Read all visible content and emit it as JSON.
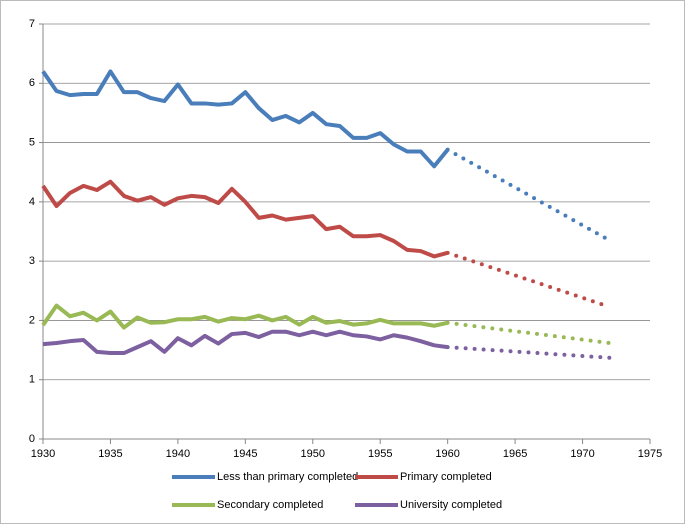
{
  "chart_data": {
    "type": "line",
    "x": [
      1930,
      1931,
      1932,
      1933,
      1934,
      1935,
      1936,
      1937,
      1938,
      1939,
      1940,
      1941,
      1942,
      1943,
      1944,
      1945,
      1946,
      1947,
      1948,
      1949,
      1950,
      1951,
      1952,
      1953,
      1954,
      1955,
      1956,
      1957,
      1958,
      1959,
      1960
    ],
    "projection_x": 1972,
    "series": [
      {
        "name": "Less than primary completed",
        "color": "#4a7ebb",
        "values": [
          6.2,
          5.87,
          5.8,
          5.82,
          5.82,
          6.2,
          5.85,
          5.85,
          5.75,
          5.7,
          5.98,
          5.66,
          5.66,
          5.64,
          5.66,
          5.85,
          5.58,
          5.38,
          5.45,
          5.34,
          5.5,
          5.31,
          5.28,
          5.08,
          5.08,
          5.16,
          4.97,
          4.85,
          4.85,
          4.6,
          4.88
        ],
        "projection_value": 3.35
      },
      {
        "name": "Primary completed",
        "color": "#be4b48",
        "values": [
          4.27,
          3.93,
          4.15,
          4.27,
          4.2,
          4.34,
          4.1,
          4.02,
          4.08,
          3.95,
          4.06,
          4.1,
          4.08,
          3.98,
          4.22,
          4.0,
          3.73,
          3.77,
          3.7,
          3.73,
          3.76,
          3.54,
          3.58,
          3.42,
          3.42,
          3.44,
          3.34,
          3.19,
          3.17,
          3.08,
          3.14
        ],
        "projection_value": 2.23
      },
      {
        "name": "Secondary completed",
        "color": "#98b954",
        "values": [
          1.92,
          2.25,
          2.07,
          2.13,
          2.0,
          2.15,
          1.88,
          2.05,
          1.96,
          1.97,
          2.02,
          2.02,
          2.06,
          1.98,
          2.04,
          2.02,
          2.08,
          2.0,
          2.06,
          1.93,
          2.06,
          1.96,
          1.99,
          1.93,
          1.95,
          2.01,
          1.95,
          1.95,
          1.95,
          1.91,
          1.96
        ],
        "projection_value": 1.62
      },
      {
        "name": "University completed",
        "color": "#7d60a0",
        "values": [
          1.6,
          1.62,
          1.65,
          1.67,
          1.47,
          1.45,
          1.45,
          1.55,
          1.65,
          1.47,
          1.7,
          1.58,
          1.74,
          1.61,
          1.77,
          1.79,
          1.72,
          1.81,
          1.81,
          1.75,
          1.81,
          1.75,
          1.81,
          1.75,
          1.73,
          1.68,
          1.75,
          1.71,
          1.65,
          1.58,
          1.55
        ],
        "projection_value": 1.37
      }
    ],
    "xlim": [
      1930,
      1975
    ],
    "xticks": [
      1930,
      1935,
      1940,
      1945,
      1950,
      1955,
      1960,
      1965,
      1970,
      1975
    ],
    "ylim": [
      0,
      7
    ],
    "yticks": [
      0,
      1,
      2,
      3,
      4,
      5,
      6,
      7
    ],
    "grid": true
  }
}
